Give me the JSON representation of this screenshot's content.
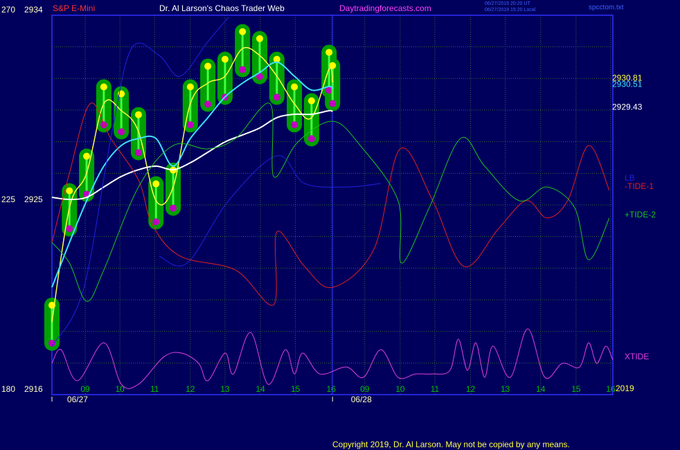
{
  "chart_data": {
    "type": "line",
    "symbol": "S&P E-Mini",
    "title": "Dr. Al Larson's Chaos Trader Web",
    "site": "Daytradingforecasts.com",
    "timestamps": [
      "06/27/2019 20:20 UT",
      "06/27/2019 15:20 Local"
    ],
    "file": "spcctom.txt",
    "copyright": "Copyright 2019, Dr. Al Larson. May not be copied by any means.",
    "year": "2019",
    "background": "#00005c",
    "xlim": [
      -0.95,
      15.06
    ],
    "xticks": [
      {
        "value": 0,
        "label": "09"
      },
      {
        "value": 0.99,
        "label": "10"
      },
      {
        "value": 1.98,
        "label": "11"
      },
      {
        "value": 3.0,
        "label": "12"
      },
      {
        "value": 3.99,
        "label": "13"
      },
      {
        "value": 5.0,
        "label": "14"
      },
      {
        "value": 6.0,
        "label": "15"
      },
      {
        "value": 7.02,
        "label": "16"
      },
      {
        "value": 7.98,
        "label": "09"
      },
      {
        "value": 8.99,
        "label": "10"
      },
      {
        "value": 9.98,
        "label": "11"
      },
      {
        "value": 11.0,
        "label": "12"
      },
      {
        "value": 11.99,
        "label": "13"
      },
      {
        "value": 13.0,
        "label": "14"
      },
      {
        "value": 14.01,
        "label": "15"
      },
      {
        "value": 15.0,
        "label": "16"
      }
    ],
    "date_labels": [
      {
        "value": -0.22,
        "label": "06/27"
      },
      {
        "value": 7.88,
        "label": "06/28"
      }
    ],
    "day_lines": [
      -0.95,
      7.06
    ],
    "ylim": [
      2916,
      2934
    ],
    "yticks": [
      2916,
      2925,
      2934
    ],
    "ygrid": [
      2917.5,
      2919,
      2920.5,
      2922,
      2923.5,
      2926.5,
      2928,
      2929.5,
      2931,
      2932.5
    ],
    "y2lim": [
      180,
      270
    ],
    "y2ticks": [
      180,
      225,
      270
    ],
    "grid": true,
    "price_x": [
      -0.95,
      -0.45,
      0.04,
      0.53,
      1.03,
      1.52,
      2.02,
      2.51,
      3.0,
      3.5,
      3.99,
      4.49,
      4.98,
      5.47,
      5.97,
      6.46,
      6.96,
      7.06
    ],
    "series": [
      {
        "style": "band",
        "color": "#00a000",
        "x": [
          -0.95,
          -0.45,
          0.04,
          0.53,
          1.03,
          1.52,
          2.02,
          2.51,
          3.0,
          3.5,
          3.99,
          4.49,
          4.98,
          5.47,
          5.97,
          6.46,
          6.96,
          7.06
        ],
        "high": [
          2920.24,
          2925.67,
          2927.31,
          2930.6,
          2930.27,
          2929.28,
          2926.0,
          2926.65,
          2930.6,
          2931.58,
          2931.91,
          2933.22,
          2932.89,
          2931.91,
          2930.6,
          2929.94,
          2932.24,
          2931.61
        ],
        "low": [
          2918.44,
          2923.87,
          2925.51,
          2928.8,
          2928.47,
          2927.48,
          2924.2,
          2924.85,
          2928.8,
          2929.78,
          2930.11,
          2931.42,
          2931.09,
          2930.11,
          2928.8,
          2928.14,
          2930.44,
          2929.81
        ],
        "high_color": "#ffff00",
        "low_color": "#c000c0"
      },
      {
        "style": "line",
        "color": "#ffff40",
        "width": 1.5,
        "x": [
          -0.95,
          -0.45,
          0.04,
          0.53,
          1.03,
          1.52,
          2.02,
          2.51,
          3.0,
          3.5,
          3.99,
          4.49,
          4.98,
          5.47,
          5.97,
          6.46,
          6.96,
          7.06
        ],
        "y": [
          2919.45,
          2924.87,
          2926.51,
          2929.8,
          2929.47,
          2928.48,
          2925.2,
          2925.85,
          2929.8,
          2930.78,
          2931.11,
          2932.42,
          2932.09,
          2931.11,
          2929.8,
          2929.14,
          2931.44,
          2930.81
        ]
      },
      {
        "style": "line",
        "color": "#40e0ff",
        "width": 2,
        "x": [
          -0.95,
          -0.45,
          0.04,
          0.53,
          1.03,
          1.52,
          2.02,
          2.51,
          3.0,
          3.5,
          3.99,
          4.49,
          4.98,
          5.47,
          5.97,
          6.46,
          6.96,
          7.06
        ],
        "y": [
          2921.09,
          2923.22,
          2925.2,
          2926.84,
          2927.82,
          2928.15,
          2928.15,
          2926.84,
          2928.15,
          2929.14,
          2930.12,
          2930.78,
          2931.28,
          2931.77,
          2931.11,
          2930.45,
          2930.62,
          2930.51
        ]
      },
      {
        "style": "line",
        "color": "#ffffff",
        "width": 2,
        "x": [
          -0.95,
          -0.45,
          0.04,
          0.53,
          1.03,
          1.52,
          2.02,
          2.51,
          3.0,
          3.5,
          3.99,
          4.49,
          4.98,
          5.47,
          5.97,
          6.46,
          6.96,
          7.06
        ],
        "y": [
          2925.36,
          2925.26,
          2925.36,
          2925.85,
          2926.35,
          2926.67,
          2926.84,
          2926.67,
          2927.0,
          2927.5,
          2927.99,
          2928.32,
          2928.65,
          2929.14,
          2929.3,
          2929.3,
          2929.47,
          2929.43
        ]
      },
      {
        "style": "line",
        "name": "LB",
        "color": "#2020e0",
        "width": 1,
        "x": [
          -0.95,
          -0.06,
          0.73,
          1.32,
          2.11,
          2.71,
          3.5,
          4.09,
          4.2,
          2.11,
          2.91,
          4.09,
          5.47,
          6.26,
          7.45,
          8.44
        ],
        "y": [
          2918.3,
          2920.93,
          2928.15,
          2932.42,
          2932.09,
          2931.11,
          2932.75,
          2933.9,
          null,
          2922.57,
          2922.24,
          2925.2,
          2927.33,
          2926.02,
          2925.85,
          2926.02
        ]
      },
      {
        "style": "line",
        "name": "-TIDE-1",
        "color": "#e02020",
        "width": 1,
        "x": [
          -0.95,
          -0.45,
          0.14,
          0.73,
          1.52,
          1.92,
          2.71,
          4.29,
          5.38,
          5.47,
          6.26,
          7.06,
          8.24,
          8.99,
          9.92,
          10.81,
          11.8,
          12.59,
          13.18,
          13.77,
          14.37,
          14.96
        ],
        "y": [
          2923.22,
          2926.51,
          2929.8,
          2928.15,
          2926.18,
          2924.05,
          2922.57,
          2921.91,
          2920.27,
          2923.72,
          2922.08,
          2921.09,
          2922.9,
          2927.66,
          2925.2,
          2922.08,
          2923.88,
          2925.2,
          2924.38,
          2925.2,
          2927.82,
          2925.69
        ]
      },
      {
        "style": "line",
        "name": "+TIDE-2",
        "color": "#20c020",
        "width": 1,
        "x": [
          -0.95,
          -0.45,
          0.04,
          0.53,
          1.52,
          2.51,
          3.5,
          4.29,
          5.28,
          5.38,
          6.07,
          7.06,
          7.85,
          8.93,
          9.03,
          9.82,
          10.71,
          11.4,
          12.39,
          13.18,
          13.97,
          14.37,
          14.96
        ],
        "y": [
          2923.22,
          2922.24,
          2920.43,
          2921.91,
          2925.85,
          2927.82,
          2927.66,
          2928.15,
          2929.8,
          2926.35,
          2927.99,
          2928.97,
          2927.82,
          2925.2,
          2922.24,
          2924.87,
          2928.15,
          2926.84,
          2925.2,
          2925.85,
          2924.87,
          2922.4,
          2924.38
        ]
      },
      {
        "style": "line",
        "name": "XTIDE",
        "color": "#e040e0",
        "width": 1,
        "x": [
          -0.95,
          -0.69,
          -0.22,
          0.53,
          1.03,
          1.52,
          2.25,
          2.75,
          3.24,
          3.5,
          3.99,
          4.23,
          4.72,
          5.22,
          5.71,
          5.97,
          6.21,
          6.7,
          7.45,
          7.94,
          8.44,
          8.93,
          9.43,
          9.92,
          10.41,
          10.65,
          10.91,
          11.15,
          11.4,
          11.64,
          12.13,
          12.63,
          13.12,
          13.62,
          14.11,
          14.37,
          14.6,
          14.86,
          15.06
        ],
        "y": [
          2917.48,
          2918.13,
          2916.66,
          2918.46,
          2916.49,
          2916.49,
          2917.8,
          2917.97,
          2917.48,
          2916.66,
          2917.97,
          2916.98,
          2918.95,
          2916.49,
          2918.13,
          2916.98,
          2917.97,
          2916.98,
          2917.31,
          2916.82,
          2918.13,
          2916.82,
          2916.98,
          2916.98,
          2917.15,
          2918.63,
          2917.15,
          2918.46,
          2916.82,
          2918.3,
          2916.82,
          2919.12,
          2916.82,
          2917.48,
          2917.31,
          2918.46,
          2917.48,
          2918.3,
          2917.64
        ]
      }
    ]
  }
}
